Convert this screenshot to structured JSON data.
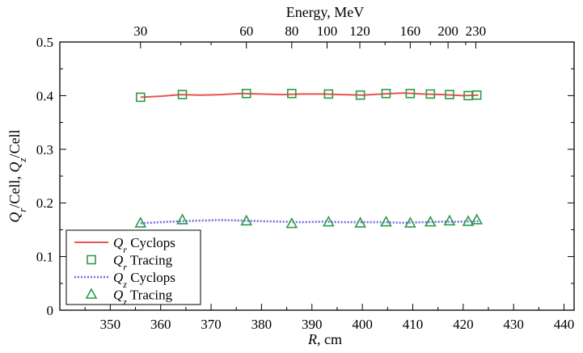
{
  "chart_data": {
    "type": "line",
    "xlabel_main": "R",
    "xlabel_unit": ", cm",
    "ylabel_parts": [
      "Q",
      "r",
      "/Cell, ",
      "Q",
      "z",
      "/Cell"
    ],
    "top_axis_title": "Energy, MeV",
    "xlim": [
      340,
      442
    ],
    "ylim": [
      0,
      0.5
    ],
    "x_ticks": [
      350,
      360,
      370,
      380,
      390,
      400,
      410,
      420,
      430,
      440
    ],
    "y_ticks": [
      0,
      0.1,
      0.2,
      0.3,
      0.4,
      0.5
    ],
    "y_tick_labels": [
      "0",
      "0.1",
      "0.2",
      "0.3",
      "0.4",
      "0.5"
    ],
    "top_ticks": [
      {
        "label": "30",
        "r": 356
      },
      {
        "label": "60",
        "r": 377
      },
      {
        "label": "80",
        "r": 386
      },
      {
        "label": "100",
        "r": 393
      },
      {
        "label": "120",
        "r": 399.5
      },
      {
        "label": "160",
        "r": 409.5
      },
      {
        "label": "200",
        "r": 417
      },
      {
        "label": "230",
        "r": 422.5
      }
    ],
    "top_minor_ticks": [
      364,
      370,
      404.5,
      413.5,
      420.5
    ],
    "series": [
      {
        "name": "Q_r Cyclops",
        "legend_main": "Q",
        "legend_sub": "r",
        "legend_text": " Cyclops",
        "style": "line",
        "color": "#e8534f",
        "x": [
          356,
          360,
          364,
          368,
          372,
          376,
          380,
          384,
          388,
          392,
          396,
          400,
          404,
          408,
          412,
          416,
          420,
          423
        ],
        "y": [
          0.397,
          0.399,
          0.402,
          0.401,
          0.402,
          0.404,
          0.403,
          0.402,
          0.403,
          0.403,
          0.402,
          0.401,
          0.403,
          0.405,
          0.403,
          0.402,
          0.4,
          0.401
        ]
      },
      {
        "name": "Q_r Tracing",
        "legend_main": "Q",
        "legend_sub": "r",
        "legend_text": " Tracing",
        "style": "square",
        "color": "#2e9a47",
        "x": [
          356,
          364.3,
          377,
          386,
          393.3,
          399.6,
          404.7,
          409.5,
          413.5,
          417.3,
          421,
          422.7
        ],
        "y": [
          0.397,
          0.402,
          0.404,
          0.404,
          0.403,
          0.401,
          0.404,
          0.404,
          0.403,
          0.402,
          0.4,
          0.401
        ]
      },
      {
        "name": "Q_z Cyclops",
        "legend_main": "Q",
        "legend_sub": "z",
        "legend_text": " Cyclops",
        "style": "dotted",
        "color": "#6f6fdf",
        "x": [
          356,
          360,
          364,
          368,
          372,
          376,
          380,
          384,
          388,
          392,
          396,
          400,
          404,
          408,
          412,
          416,
          420,
          423
        ],
        "y": [
          0.162,
          0.164,
          0.166,
          0.167,
          0.168,
          0.167,
          0.166,
          0.165,
          0.164,
          0.165,
          0.164,
          0.164,
          0.164,
          0.163,
          0.164,
          0.165,
          0.165,
          0.166
        ]
      },
      {
        "name": "Q_z Tracing",
        "legend_main": "Q",
        "legend_sub": "z",
        "legend_text": " Tracing",
        "style": "triangle",
        "color": "#2e9a47",
        "x": [
          356,
          364.3,
          377,
          386,
          393.3,
          399.6,
          404.7,
          409.5,
          413.5,
          417.3,
          421,
          422.7
        ],
        "y": [
          0.162,
          0.168,
          0.166,
          0.161,
          0.164,
          0.162,
          0.164,
          0.162,
          0.164,
          0.166,
          0.165,
          0.168
        ]
      }
    ],
    "legend_position": "bottom-left"
  }
}
